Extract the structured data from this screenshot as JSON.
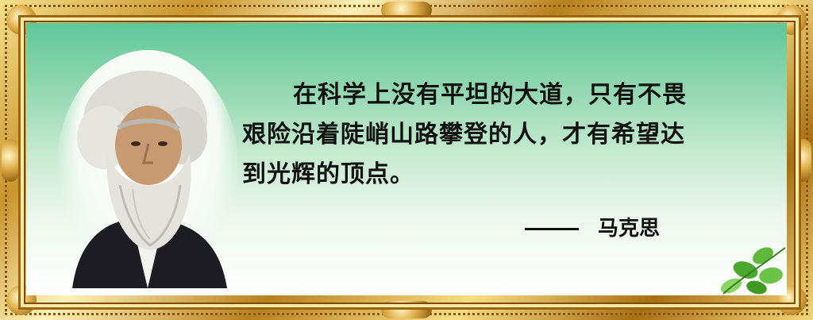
{
  "quote": {
    "lines": [
      "在科学上没有平坦的大道，只有不畏",
      "艰险沿着陡峭山路攀登的人，才有希望达",
      "到光辉的顶点。"
    ]
  },
  "author": {
    "name": "马克思"
  },
  "icons": {
    "portrait": "portrait-icon",
    "leaves": "leaf-icon"
  },
  "colors": {
    "frame_gold": "#c9952e",
    "panel_top": "#5ec79a",
    "panel_bottom": "#ffffff",
    "text": "#111111"
  }
}
